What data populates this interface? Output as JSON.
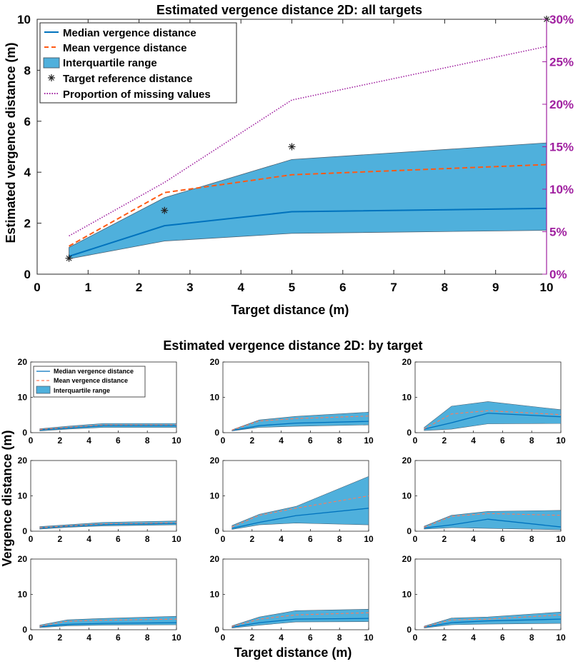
{
  "colors": {
    "median": "#0072bd",
    "mean": "#ff5a14",
    "mean_small": "#ff7a5a",
    "iqr_fill": "#4fb0dc",
    "iqr_edge": "#4a6072",
    "target_marker": "#222222",
    "missing": "#a020a0",
    "axis": "#262626",
    "right_axis": "#a020a0"
  },
  "chart_data": [
    {
      "id": "main",
      "type": "line",
      "title": "Estimated vergence distance 2D: all targets",
      "xlabel": "Target distance (m)",
      "ylabel": "Estimated vergence distance (m)",
      "xlim": [
        0,
        10
      ],
      "ylim": [
        0,
        10
      ],
      "xticks": [
        "0",
        "1",
        "2",
        "3",
        "4",
        "5",
        "6",
        "7",
        "8",
        "9",
        "10"
      ],
      "yticks": [
        "0",
        "2",
        "4",
        "6",
        "8",
        "10"
      ],
      "y2lim": [
        0,
        30
      ],
      "y2ticks": [
        "0%",
        "5%",
        "10%",
        "15%",
        "20%",
        "25%",
        "30%"
      ],
      "x": [
        0.625,
        2.5,
        5,
        10
      ],
      "median": [
        0.7,
        1.9,
        2.45,
        2.58
      ],
      "mean": [
        1.1,
        3.2,
        3.9,
        4.3
      ],
      "iqr_low": [
        0.6,
        1.3,
        1.6,
        1.72
      ],
      "iqr_high": [
        1.05,
        3.0,
        4.5,
        5.15
      ],
      "target_reference": [
        0.625,
        2.5,
        5,
        10
      ],
      "missing_percent": [
        4.5,
        10.8,
        20.5,
        26.8
      ],
      "legend": [
        "Median vergence distance",
        "Mean vergence distance",
        "Interquartile range",
        "Target reference distance",
        "Proportion of missing values"
      ],
      "legend_position": "top-left"
    },
    {
      "id": "by_target",
      "type": "line",
      "title": "Estimated vergence distance 2D: by target",
      "xlabel": "Target distance (m)",
      "ylabel": "Vergence distance (m)",
      "xlim": [
        0,
        10
      ],
      "ylim": [
        0,
        20
      ],
      "xticks": [
        "0",
        "2",
        "4",
        "6",
        "8",
        "10"
      ],
      "yticks": [
        "0",
        "10",
        "20"
      ],
      "legend": [
        "Median vergence distance",
        "Mean vergence distance",
        "Interquartile range"
      ],
      "legend_position": "top-left of first panel",
      "x": [
        0.625,
        2.5,
        5,
        10
      ],
      "panels": [
        {
          "median": [
            0.8,
            1.3,
            2.0,
            2.0
          ],
          "mean": [
            0.9,
            1.5,
            2.2,
            2.2
          ],
          "iqr_low": [
            0.5,
            1.0,
            1.5,
            1.5
          ],
          "iqr_high": [
            1.1,
            1.8,
            2.6,
            2.6
          ]
        },
        {
          "median": [
            0.6,
            2.0,
            2.7,
            3.2
          ],
          "mean": [
            0.7,
            3.3,
            4.0,
            4.7
          ],
          "iqr_low": [
            0.5,
            1.5,
            1.8,
            2.2
          ],
          "iqr_high": [
            0.8,
            3.6,
            4.6,
            5.8
          ]
        },
        {
          "median": [
            1.0,
            2.8,
            5.5,
            4.5
          ],
          "mean": [
            1.1,
            5.3,
            6.2,
            5.1
          ],
          "iqr_low": [
            0.6,
            1.0,
            2.5,
            2.6
          ],
          "iqr_high": [
            1.5,
            7.5,
            8.8,
            6.5
          ]
        },
        {
          "median": [
            0.9,
            1.4,
            1.9,
            2.2
          ],
          "mean": [
            1.0,
            1.5,
            2.1,
            2.4
          ],
          "iqr_low": [
            0.6,
            1.1,
            1.5,
            1.8
          ],
          "iqr_high": [
            1.3,
            1.8,
            2.5,
            2.9
          ]
        },
        {
          "median": [
            0.8,
            2.5,
            4.4,
            6.5
          ],
          "mean": [
            1.2,
            4.5,
            6.5,
            10.0
          ],
          "iqr_low": [
            0.5,
            1.8,
            2.3,
            1.8
          ],
          "iqr_high": [
            1.6,
            4.8,
            7.0,
            15.5
          ]
        },
        {
          "median": [
            0.9,
            1.8,
            3.4,
            1.2
          ],
          "mean": [
            1.1,
            4.2,
            5.0,
            4.5
          ],
          "iqr_low": [
            0.6,
            1.0,
            0.8,
            0.4
          ],
          "iqr_high": [
            1.4,
            4.5,
            5.6,
            5.9
          ]
        },
        {
          "median": [
            0.9,
            1.5,
            1.8,
            2.0
          ],
          "mean": [
            1.0,
            2.4,
            2.7,
            3.0
          ],
          "iqr_low": [
            0.6,
            1.1,
            1.3,
            1.4
          ],
          "iqr_high": [
            1.3,
            2.8,
            3.2,
            3.8
          ]
        },
        {
          "median": [
            0.7,
            2.0,
            3.0,
            3.2
          ],
          "mean": [
            0.9,
            3.0,
            4.2,
            4.8
          ],
          "iqr_low": [
            0.5,
            1.3,
            2.2,
            2.3
          ],
          "iqr_high": [
            1.1,
            3.6,
            5.4,
            5.8
          ]
        },
        {
          "median": [
            0.7,
            2.0,
            2.5,
            3.0
          ],
          "mean": [
            0.8,
            2.8,
            3.0,
            4.2
          ],
          "iqr_low": [
            0.5,
            1.4,
            1.6,
            1.8
          ],
          "iqr_high": [
            1.0,
            3.3,
            3.6,
            5.0
          ]
        }
      ]
    }
  ]
}
